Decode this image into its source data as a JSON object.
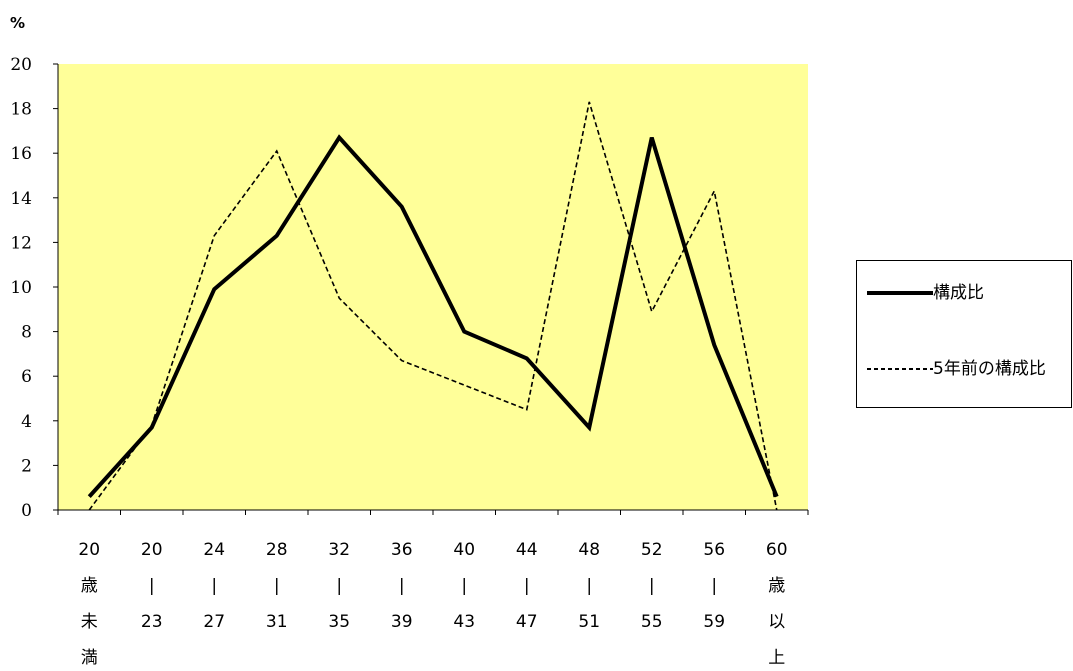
{
  "chart_data": {
    "type": "line",
    "unit_label": "%",
    "ylim": [
      0,
      20
    ],
    "y_ticks": [
      0,
      2,
      4,
      6,
      8,
      10,
      12,
      14,
      16,
      18,
      20
    ],
    "categories": [
      [
        "20",
        "歳",
        "未",
        "満"
      ],
      [
        "20",
        "|",
        "23"
      ],
      [
        "24",
        "|",
        "27"
      ],
      [
        "28",
        "|",
        "31"
      ],
      [
        "32",
        "|",
        "35"
      ],
      [
        "36",
        "|",
        "39"
      ],
      [
        "40",
        "|",
        "43"
      ],
      [
        "44",
        "|",
        "47"
      ],
      [
        "48",
        "|",
        "51"
      ],
      [
        "52",
        "|",
        "55"
      ],
      [
        "56",
        "|",
        "59"
      ],
      [
        "60",
        "歳",
        "以",
        "上"
      ]
    ],
    "series": [
      {
        "name": "構成比",
        "style": "solid",
        "color": "#000000",
        "values": [
          0.6,
          3.7,
          9.9,
          12.3,
          16.7,
          13.6,
          8.0,
          6.8,
          3.7,
          16.7,
          7.4,
          0.6
        ]
      },
      {
        "name": "5年前の構成比",
        "style": "dashed",
        "color": "#000000",
        "values": [
          0.0,
          3.8,
          12.3,
          16.1,
          9.5,
          6.7,
          5.6,
          4.5,
          18.3,
          8.9,
          14.3,
          0.0
        ]
      }
    ],
    "plot_background": "#ffff99",
    "grid": false,
    "legend_position": "right"
  }
}
